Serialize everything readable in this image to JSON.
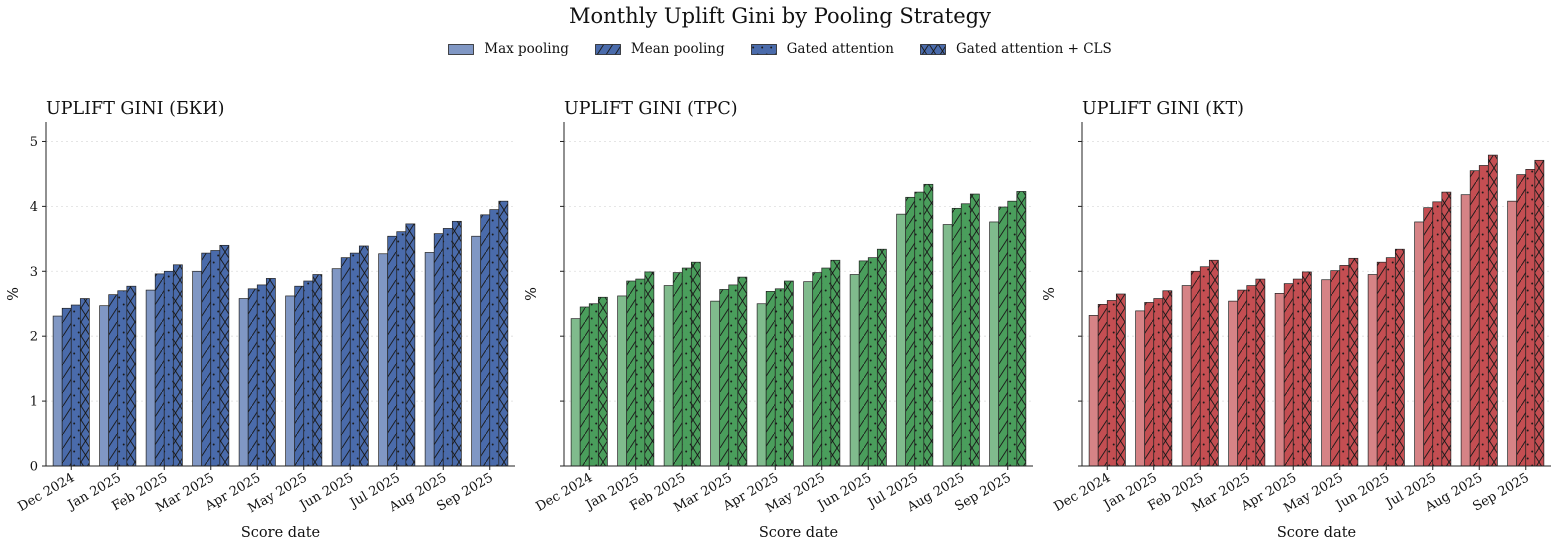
{
  "figure": {
    "title": "Monthly Uplift Gini by Pooling Strategy",
    "legend": [
      {
        "name": "Max pooling",
        "pattern": "none"
      },
      {
        "name": "Mean pooling",
        "pattern": "diagonal"
      },
      {
        "name": "Gated attention",
        "pattern": "dots"
      },
      {
        "name": "Gated attention + CLS",
        "pattern": "cross"
      }
    ],
    "legend_placement": "top-center",
    "legend_color": "#4a6bab"
  },
  "chart_data": [
    {
      "type": "bar",
      "title": "UPLIFT GINI (БКИ)",
      "xlabel": "Score date",
      "ylabel": "%",
      "ylim": [
        0,
        5.3
      ],
      "yticks": [
        0,
        1,
        2,
        3,
        4,
        5
      ],
      "grid": true,
      "color": "#4a6bab",
      "categories": [
        "Dec 2024",
        "Jan 2025",
        "Feb 2025",
        "Mar 2025",
        "Apr 2025",
        "May 2025",
        "Jun 2025",
        "Jul 2025",
        "Aug 2025",
        "Sep 2025"
      ],
      "series": [
        {
          "name": "Max pooling",
          "values": [
            2.31,
            2.47,
            2.71,
            3.0,
            2.58,
            2.62,
            3.04,
            3.27,
            3.29,
            3.54
          ]
        },
        {
          "name": "Mean pooling",
          "values": [
            2.43,
            2.64,
            2.96,
            3.28,
            2.73,
            2.77,
            3.21,
            3.54,
            3.58,
            3.87
          ]
        },
        {
          "name": "Gated attention",
          "values": [
            2.48,
            2.7,
            3.0,
            3.32,
            2.79,
            2.85,
            3.28,
            3.61,
            3.66,
            3.95
          ]
        },
        {
          "name": "Gated attention + CLS",
          "values": [
            2.58,
            2.77,
            3.1,
            3.4,
            2.89,
            2.95,
            3.39,
            3.73,
            3.77,
            4.08
          ]
        }
      ]
    },
    {
      "type": "bar",
      "title": "UPLIFT GINI (ТРС)",
      "xlabel": "Score date",
      "ylabel": "%",
      "ylim": [
        0,
        5.3
      ],
      "yticks": [
        0,
        1,
        2,
        3,
        4,
        5
      ],
      "grid": true,
      "color": "#4a9e5c",
      "categories": [
        "Dec 2024",
        "Jan 2025",
        "Feb 2025",
        "Mar 2025",
        "Apr 2025",
        "May 2025",
        "Jun 2025",
        "Jul 2025",
        "Aug 2025",
        "Sep 2025"
      ],
      "series": [
        {
          "name": "Max pooling",
          "values": [
            2.27,
            2.62,
            2.78,
            2.54,
            2.5,
            2.84,
            2.95,
            3.88,
            3.72,
            3.76
          ]
        },
        {
          "name": "Mean pooling",
          "values": [
            2.45,
            2.85,
            2.98,
            2.72,
            2.69,
            2.98,
            3.16,
            4.14,
            3.97,
            3.99
          ]
        },
        {
          "name": "Gated attention",
          "values": [
            2.5,
            2.88,
            3.05,
            2.79,
            2.73,
            3.05,
            3.21,
            4.22,
            4.04,
            4.08
          ]
        },
        {
          "name": "Gated attention + CLS",
          "values": [
            2.6,
            2.99,
            3.14,
            2.91,
            2.85,
            3.17,
            3.34,
            4.34,
            4.19,
            4.23
          ]
        }
      ]
    },
    {
      "type": "bar",
      "title": "UPLIFT GINI (КТ)",
      "xlabel": "Score date",
      "ylabel": "%",
      "ylim": [
        0,
        5.3
      ],
      "yticks": [
        0,
        1,
        2,
        3,
        4,
        5
      ],
      "grid": true,
      "color": "#c44e52",
      "categories": [
        "Dec 2024",
        "Jan 2025",
        "Feb 2025",
        "Mar 2025",
        "Apr 2025",
        "May 2025",
        "Jun 2025",
        "Jul 2025",
        "Aug 2025",
        "Sep 2025"
      ],
      "series": [
        {
          "name": "Max pooling",
          "values": [
            2.32,
            2.39,
            2.78,
            2.54,
            2.66,
            2.87,
            2.95,
            3.76,
            4.18,
            4.08
          ]
        },
        {
          "name": "Mean pooling",
          "values": [
            2.49,
            2.52,
            3.0,
            2.71,
            2.81,
            3.01,
            3.14,
            3.98,
            4.55,
            4.49
          ]
        },
        {
          "name": "Gated attention",
          "values": [
            2.55,
            2.58,
            3.07,
            2.78,
            2.88,
            3.09,
            3.21,
            4.07,
            4.63,
            4.57
          ]
        },
        {
          "name": "Gated attention + CLS",
          "values": [
            2.65,
            2.7,
            3.17,
            2.88,
            2.99,
            3.2,
            3.34,
            4.22,
            4.79,
            4.71
          ]
        }
      ]
    }
  ]
}
